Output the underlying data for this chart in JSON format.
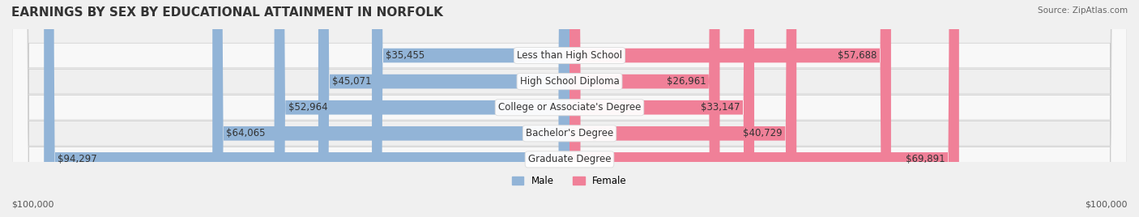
{
  "title": "EARNINGS BY SEX BY EDUCATIONAL ATTAINMENT IN NORFOLK",
  "source": "Source: ZipAtlas.com",
  "categories": [
    "Less than High School",
    "High School Diploma",
    "College or Associate's Degree",
    "Bachelor's Degree",
    "Graduate Degree"
  ],
  "male_values": [
    35455,
    45071,
    52964,
    64065,
    94297
  ],
  "female_values": [
    57688,
    26961,
    33147,
    40729,
    69891
  ],
  "male_color": "#92b4d7",
  "female_color": "#f08098",
  "male_label": "Male",
  "female_label": "Female",
  "max_value": 100000,
  "bg_color": "#f0f0f0",
  "bar_bg_color": "#e0e0e0",
  "row_bg_colors": [
    "#f5f5f5",
    "#eeeeee"
  ],
  "title_fontsize": 11,
  "label_fontsize": 8.5,
  "value_fontsize": 8.5,
  "xlabel_left": "$100,000",
  "xlabel_right": "$100,000"
}
